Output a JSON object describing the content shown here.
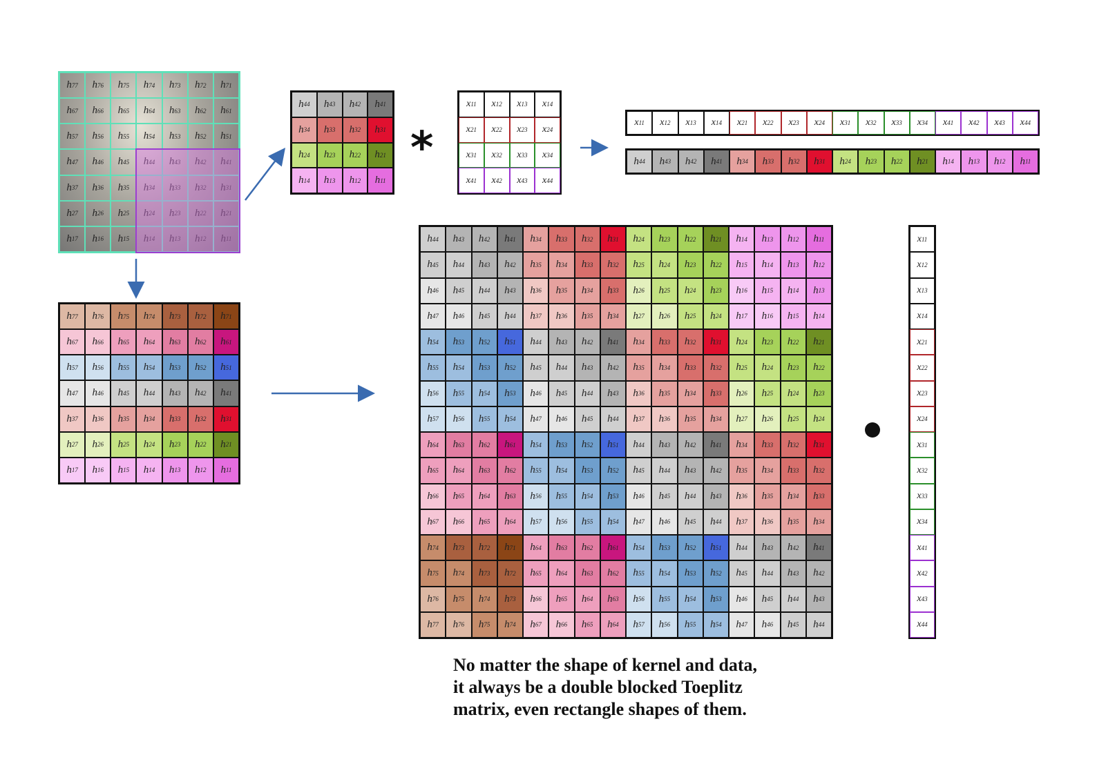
{
  "kernel_7x7": {
    "rows": [
      [
        "77",
        "76",
        "75",
        "74",
        "73",
        "72",
        "71"
      ],
      [
        "67",
        "66",
        "65",
        "64",
        "63",
        "62",
        "61"
      ],
      [
        "57",
        "56",
        "55",
        "54",
        "53",
        "52",
        "51"
      ],
      [
        "47",
        "46",
        "45",
        "44",
        "43",
        "42",
        "41"
      ],
      [
        "37",
        "36",
        "35",
        "34",
        "33",
        "32",
        "31"
      ],
      [
        "27",
        "26",
        "25",
        "24",
        "23",
        "22",
        "21"
      ],
      [
        "17",
        "16",
        "15",
        "14",
        "13",
        "12",
        "11"
      ]
    ]
  },
  "kernel_sub_4x4": {
    "rows": [
      [
        "44",
        "43",
        "42",
        "41"
      ],
      [
        "34",
        "33",
        "32",
        "31"
      ],
      [
        "24",
        "23",
        "22",
        "21"
      ],
      [
        "14",
        "13",
        "12",
        "11"
      ]
    ]
  },
  "data_4x4": {
    "rows": [
      [
        "11",
        "12",
        "13",
        "14"
      ],
      [
        "21",
        "22",
        "23",
        "24"
      ],
      [
        "31",
        "32",
        "33",
        "34"
      ],
      [
        "41",
        "42",
        "43",
        "44"
      ]
    ]
  },
  "flattened_x": [
    "11",
    "12",
    "13",
    "14",
    "21",
    "22",
    "23",
    "24",
    "31",
    "32",
    "33",
    "34",
    "41",
    "42",
    "43",
    "44"
  ],
  "flattened_h": [
    "44",
    "43",
    "42",
    "41",
    "34",
    "33",
    "32",
    "31",
    "24",
    "23",
    "22",
    "21",
    "14",
    "13",
    "12",
    "11"
  ],
  "toeplitz": {
    "rows": [
      [
        "44",
        "43",
        "42",
        "41",
        "34",
        "33",
        "32",
        "31",
        "24",
        "23",
        "22",
        "21",
        "14",
        "13",
        "12",
        "11"
      ],
      [
        "45",
        "44",
        "43",
        "42",
        "35",
        "34",
        "33",
        "32",
        "25",
        "24",
        "23",
        "22",
        "15",
        "14",
        "13",
        "12"
      ],
      [
        "46",
        "45",
        "44",
        "43",
        "36",
        "35",
        "34",
        "33",
        "26",
        "25",
        "24",
        "23",
        "16",
        "15",
        "14",
        "13"
      ],
      [
        "47",
        "46",
        "45",
        "44",
        "37",
        "36",
        "35",
        "34",
        "27",
        "26",
        "25",
        "24",
        "17",
        "16",
        "15",
        "14"
      ],
      [
        "54",
        "53",
        "52",
        "51",
        "44",
        "43",
        "42",
        "41",
        "34",
        "33",
        "32",
        "31",
        "24",
        "23",
        "22",
        "21"
      ],
      [
        "55",
        "54",
        "53",
        "52",
        "45",
        "44",
        "43",
        "42",
        "35",
        "34",
        "33",
        "32",
        "25",
        "24",
        "23",
        "22"
      ],
      [
        "56",
        "55",
        "54",
        "53",
        "46",
        "45",
        "44",
        "43",
        "36",
        "35",
        "34",
        "33",
        "26",
        "25",
        "24",
        "23"
      ],
      [
        "57",
        "56",
        "55",
        "54",
        "47",
        "46",
        "45",
        "44",
        "37",
        "36",
        "35",
        "34",
        "27",
        "26",
        "25",
        "24"
      ],
      [
        "64",
        "63",
        "62",
        "61",
        "54",
        "53",
        "52",
        "51",
        "44",
        "43",
        "42",
        "41",
        "34",
        "33",
        "32",
        "31"
      ],
      [
        "65",
        "64",
        "63",
        "62",
        "55",
        "54",
        "53",
        "52",
        "45",
        "44",
        "43",
        "42",
        "35",
        "34",
        "33",
        "32"
      ],
      [
        "66",
        "65",
        "64",
        "63",
        "56",
        "55",
        "54",
        "53",
        "46",
        "45",
        "44",
        "43",
        "36",
        "35",
        "34",
        "33"
      ],
      [
        "67",
        "66",
        "65",
        "64",
        "57",
        "56",
        "55",
        "54",
        "47",
        "46",
        "45",
        "44",
        "37",
        "36",
        "35",
        "34"
      ],
      [
        "74",
        "73",
        "72",
        "71",
        "64",
        "63",
        "62",
        "61",
        "54",
        "53",
        "52",
        "51",
        "44",
        "43",
        "42",
        "41"
      ],
      [
        "75",
        "74",
        "73",
        "72",
        "65",
        "64",
        "63",
        "62",
        "55",
        "54",
        "53",
        "52",
        "45",
        "44",
        "43",
        "42"
      ],
      [
        "76",
        "75",
        "74",
        "73",
        "66",
        "65",
        "64",
        "63",
        "56",
        "55",
        "54",
        "53",
        "46",
        "45",
        "44",
        "43"
      ],
      [
        "77",
        "76",
        "75",
        "74",
        "67",
        "66",
        "65",
        "64",
        "57",
        "56",
        "55",
        "54",
        "47",
        "46",
        "45",
        "44"
      ]
    ]
  },
  "x_vector": [
    "11",
    "12",
    "13",
    "14",
    "21",
    "22",
    "23",
    "24",
    "31",
    "32",
    "33",
    "34",
    "41",
    "42",
    "43",
    "44"
  ],
  "symbols": {
    "h": "h",
    "x": "x",
    "convolve": "*"
  },
  "caption": {
    "line1": "No matter the shape of kernel and data,",
    "line2": "it always be a double blocked Toeplitz",
    "line3": "matrix, even rectangle shapes of them."
  },
  "colors": {
    "row1": [
      "#f8caf6",
      "#f5b3f1",
      "#ee95ec",
      "#e56ddf"
    ],
    "row2": [
      "#e3f0bd",
      "#c4e282",
      "#a6d25a",
      "#6f8f23"
    ],
    "row3": [
      "#f0c8c4",
      "#e5a19e",
      "#d86f6c",
      "#e0102f"
    ],
    "row4": [
      "#e6e6e6",
      "#cfcfcf",
      "#b4b4b4",
      "#7a7a7a"
    ],
    "row5": [
      "#cfe0ef",
      "#9dbedf",
      "#6f9fcd",
      "#4668dd"
    ],
    "row6": [
      "#f6c6d6",
      "#ee9fbd",
      "#e27da2",
      "#c8167e"
    ],
    "row7": [
      "#ddb8a4",
      "#c68c6b",
      "#a9603f",
      "#8b4516"
    ]
  }
}
